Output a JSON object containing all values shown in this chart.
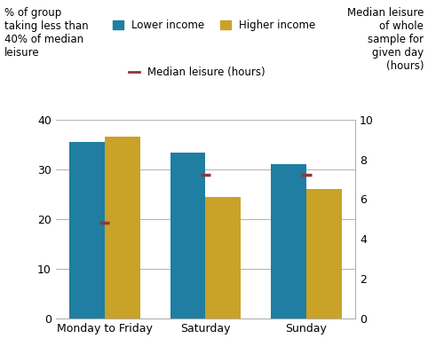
{
  "categories": [
    "Monday to Friday",
    "Saturday",
    "Sunday"
  ],
  "lower_income": [
    35.5,
    33.3,
    31.0
  ],
  "higher_income": [
    36.5,
    24.5,
    26.0
  ],
  "median_leisure_hours": [
    4.8,
    7.2,
    7.2
  ],
  "lower_income_color": "#1f7ea1",
  "higher_income_color": "#c9a227",
  "median_line_color": "#8b3a3a",
  "ylim_left": [
    0,
    40
  ],
  "ylim_right": [
    0,
    10
  ],
  "ylabel_left": "% of group\ntaking less than\n40% of median\nleisure",
  "ylabel_right": "Median leisure\nof whole\nsample for\ngiven day\n(hours)",
  "legend_lower": "Lower income",
  "legend_higher": "Higher income",
  "legend_median": "Median leisure (hours)",
  "background_color": "#ffffff",
  "grid_color": "#b0b0b0",
  "bar_width": 0.35,
  "tick_fontsize": 9,
  "label_fontsize": 8.5
}
